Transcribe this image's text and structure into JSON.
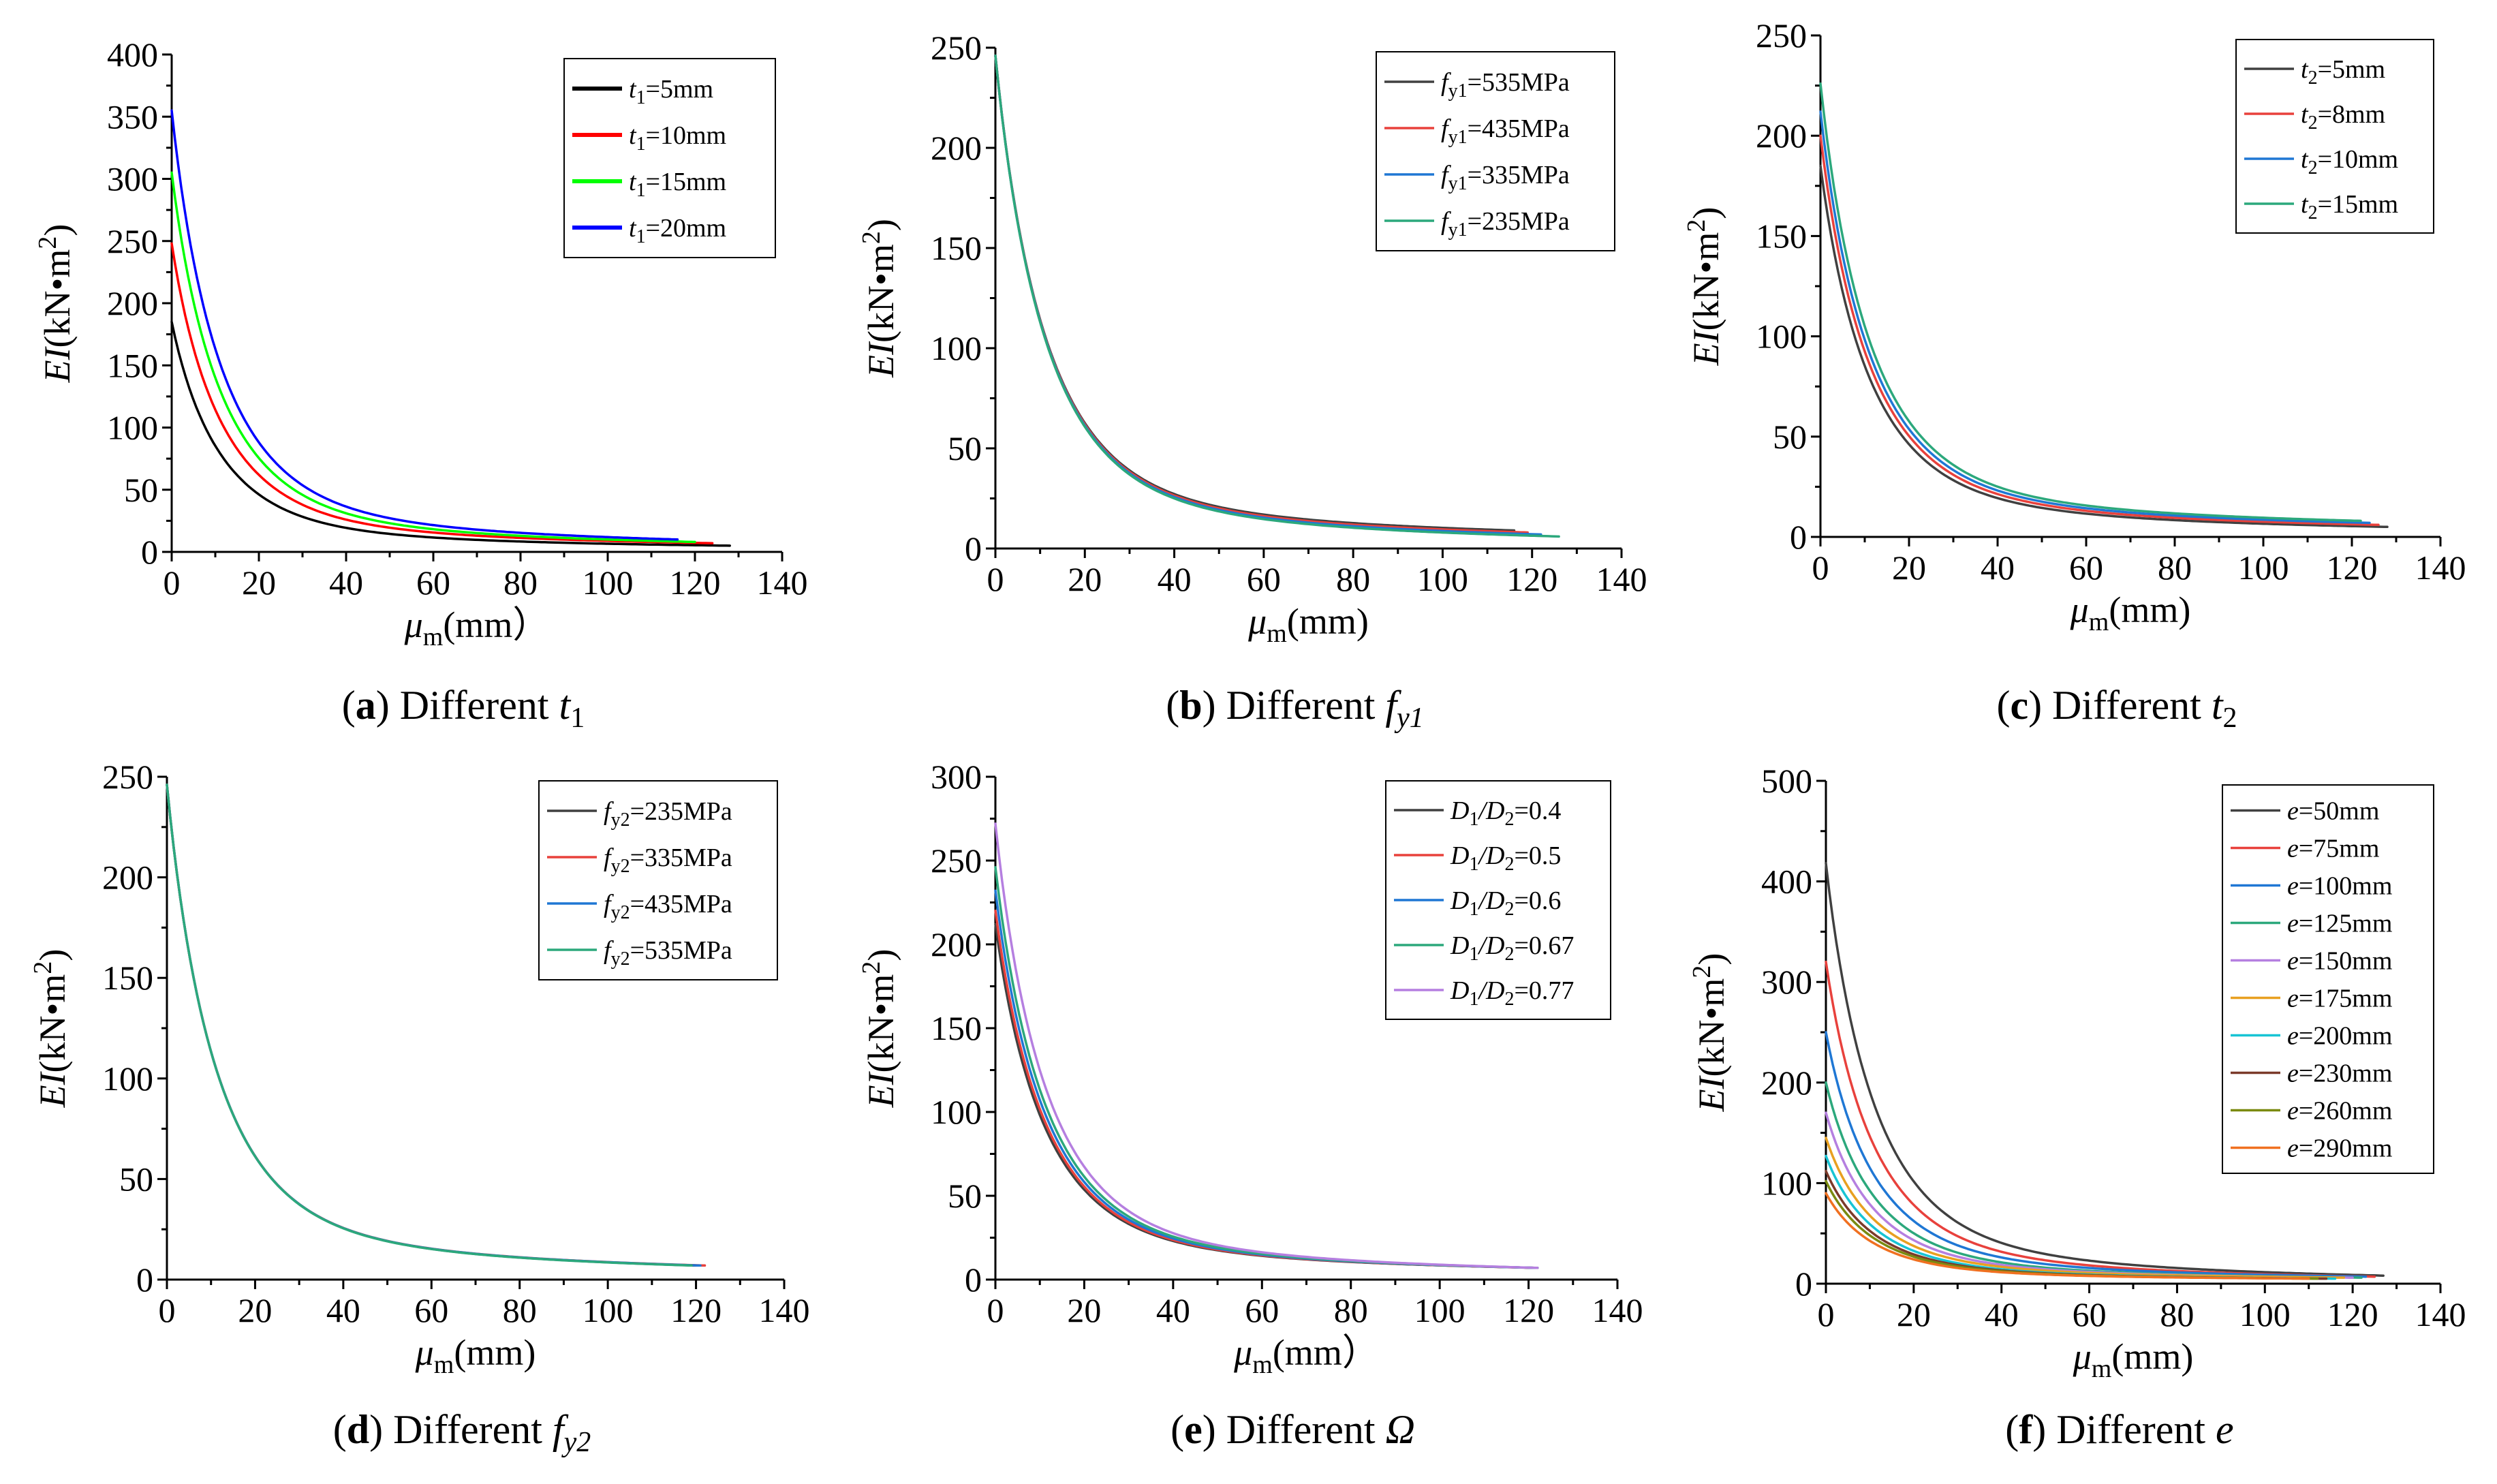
{
  "figure": {
    "chart_data": [
      {
        "id": "a",
        "type": "line",
        "caption": {
          "letter": "a",
          "prefix": "Different ",
          "sym": "t",
          "sub": "1",
          "symItalic": true
        },
        "xlabel": {
          "sym": "μ",
          "sub": "m",
          "unit": "(mm）"
        },
        "ylabel": {
          "sym": "EI",
          "unit": "(kN•m",
          "sup": "2",
          "close": ")"
        },
        "xlim": [
          0,
          140
        ],
        "ylim": [
          0,
          400
        ],
        "xticks": [
          "0",
          "20",
          "40",
          "60",
          "80",
          "100",
          "120",
          "140"
        ],
        "yticks": [
          "0",
          "50",
          "100",
          "150",
          "200",
          "250",
          "300",
          "350",
          "400"
        ],
        "legend_position": "top-right",
        "series": [
          {
            "name": "t1=5mm",
            "label": {
              "sym": "t",
              "sub": "1",
              "rest": "=5mm"
            },
            "color": "#000000",
            "bold": true,
            "x_end": 128,
            "peak": 185,
            "tail": 5
          },
          {
            "name": "t1=10mm",
            "label": {
              "sym": "t",
              "sub": "1",
              "rest": "=10mm"
            },
            "color": "#ff0000",
            "bold": true,
            "x_end": 124,
            "peak": 248,
            "tail": 7
          },
          {
            "name": "t1=15mm",
            "label": {
              "sym": "t",
              "sub": "1",
              "rest": "=15mm"
            },
            "color": "#00ff00",
            "bold": true,
            "x_end": 120,
            "peak": 305,
            "tail": 8
          },
          {
            "name": "t1=20mm",
            "label": {
              "sym": "t",
              "sub": "1",
              "rest": "=20mm"
            },
            "color": "#0000ff",
            "bold": true,
            "x_end": 116,
            "peak": 355,
            "tail": 10
          }
        ]
      },
      {
        "id": "b",
        "type": "line",
        "caption": {
          "letter": "b",
          "prefix": "Different ",
          "sym": "f",
          "sub": "y1",
          "symItalic": true
        },
        "xlabel": {
          "sym": "μ",
          "sub": "m",
          "unit": "(mm)"
        },
        "ylabel": {
          "sym": "EI",
          "unit": "(kN•m",
          "sup": "2",
          "close": ")"
        },
        "xlim": [
          0,
          140
        ],
        "ylim": [
          0,
          250
        ],
        "xticks": [
          "0",
          "20",
          "40",
          "60",
          "80",
          "100",
          "120",
          "140"
        ],
        "yticks": [
          "0",
          "50",
          "100",
          "150",
          "200",
          "250"
        ],
        "legend_position": "top-right",
        "series": [
          {
            "name": "fy1=535MPa",
            "label": {
              "sym": "f",
              "sub": "y1",
              "rest": "=535MPa"
            },
            "color": "#404040",
            "x_end": 116,
            "peak": 246,
            "tail": 9
          },
          {
            "name": "fy1=435MPa",
            "label": {
              "sym": "f",
              "sub": "y1",
              "rest": "=435MPa"
            },
            "color": "#e8413c",
            "x_end": 119,
            "peak": 246,
            "tail": 8
          },
          {
            "name": "fy1=335MPa",
            "label": {
              "sym": "f",
              "sub": "y1",
              "rest": "=335MPa"
            },
            "color": "#1f77d4",
            "x_end": 122,
            "peak": 246,
            "tail": 7
          },
          {
            "name": "fy1=235MPa",
            "label": {
              "sym": "f",
              "sub": "y1",
              "rest": "=235MPa"
            },
            "color": "#2ca87c",
            "x_end": 126,
            "peak": 246,
            "tail": 6
          }
        ]
      },
      {
        "id": "c",
        "type": "line",
        "caption": {
          "letter": "c",
          "prefix": "Different ",
          "sym": "t",
          "sub": "2",
          "symItalic": true
        },
        "xlabel": {
          "sym": "μ",
          "sub": "m",
          "unit": "(mm)"
        },
        "ylabel": {
          "sym": "EI",
          "unit": "(kN•m",
          "sup": "2",
          "close": ")"
        },
        "xlim": [
          0,
          140
        ],
        "ylim": [
          0,
          250
        ],
        "xticks": [
          "0",
          "20",
          "40",
          "60",
          "80",
          "100",
          "120",
          "140"
        ],
        "yticks": [
          "0",
          "50",
          "100",
          "150",
          "200",
          "250"
        ],
        "legend_position": "top-right",
        "series": [
          {
            "name": "t2=5mm",
            "label": {
              "sym": "t",
              "sub": "2",
              "rest": "=5mm"
            },
            "color": "#404040",
            "x_end": 128,
            "peak": 185,
            "tail": 5
          },
          {
            "name": "t2=8mm",
            "label": {
              "sym": "t",
              "sub": "2",
              "rest": "=8mm"
            },
            "color": "#e8413c",
            "x_end": 126,
            "peak": 200,
            "tail": 6
          },
          {
            "name": "t2=10mm",
            "label": {
              "sym": "t",
              "sub": "2",
              "rest": "=10mm"
            },
            "color": "#1f77d4",
            "x_end": 124,
            "peak": 212,
            "tail": 7
          },
          {
            "name": "t2=15mm",
            "label": {
              "sym": "t",
              "sub": "2",
              "rest": "=15mm"
            },
            "color": "#2ca87c",
            "x_end": 122,
            "peak": 226,
            "tail": 8
          }
        ]
      },
      {
        "id": "d",
        "type": "line",
        "caption": {
          "letter": "d",
          "prefix": "Different ",
          "sym": "f",
          "sub": "y2",
          "symItalic": true
        },
        "xlabel": {
          "sym": "μ",
          "sub": "m",
          "unit": "(mm)"
        },
        "ylabel": {
          "sym": "EI",
          "unit": "(kN•m",
          "sup": "2",
          "close": ")"
        },
        "xlim": [
          0,
          140
        ],
        "ylim": [
          0,
          250
        ],
        "xticks": [
          "0",
          "20",
          "40",
          "60",
          "80",
          "100",
          "120",
          "140"
        ],
        "yticks": [
          "0",
          "50",
          "100",
          "150",
          "200",
          "250"
        ],
        "legend_position": "top-right",
        "series": [
          {
            "name": "fy2=235MPa",
            "label": {
              "sym": "f",
              "sub": "y2",
              "rest": "=235MPa"
            },
            "color": "#404040",
            "x_end": 120,
            "peak": 246,
            "tail": 7
          },
          {
            "name": "fy2=335MPa",
            "label": {
              "sym": "f",
              "sub": "y2",
              "rest": "=335MPa"
            },
            "color": "#e8413c",
            "x_end": 122,
            "peak": 246,
            "tail": 7
          },
          {
            "name": "fy2=435MPa",
            "label": {
              "sym": "f",
              "sub": "y2",
              "rest": "=435MPa"
            },
            "color": "#1f77d4",
            "x_end": 121,
            "peak": 246,
            "tail": 7
          },
          {
            "name": "fy2=535MPa",
            "label": {
              "sym": "f",
              "sub": "y2",
              "rest": "=535MPa"
            },
            "color": "#2ca87c",
            "x_end": 119,
            "peak": 246,
            "tail": 7
          }
        ]
      },
      {
        "id": "e",
        "type": "line",
        "caption": {
          "letter": "e",
          "prefix": "Different ",
          "sym": "Ω",
          "sub": "",
          "symItalic": true
        },
        "xlabel": {
          "sym": "μ",
          "sub": "m",
          "unit": "(mm）"
        },
        "ylabel": {
          "sym": "EI",
          "unit": "(kN•m",
          "sup": "2",
          "close": ")"
        },
        "xlim": [
          0,
          140
        ],
        "ylim": [
          0,
          300
        ],
        "xticks": [
          "0",
          "20",
          "40",
          "60",
          "80",
          "100",
          "120",
          "140"
        ],
        "yticks": [
          "0",
          "50",
          "100",
          "150",
          "200",
          "250",
          "300"
        ],
        "legend_position": "top-right",
        "series": [
          {
            "name": "D1/D2=0.4",
            "label": {
              "sym": "D",
              "sub": "1",
              "sym2": "/D",
              "sub2": "2",
              "rest": "=0.4"
            },
            "color": "#404040",
            "x_end": 122,
            "peak": 212,
            "tail": 7
          },
          {
            "name": "D1/D2=0.5",
            "label": {
              "sym": "D",
              "sub": "1",
              "sym2": "/D",
              "sub2": "2",
              "rest": "=0.5"
            },
            "color": "#e8413c",
            "x_end": 122,
            "peak": 220,
            "tail": 7
          },
          {
            "name": "D1/D2=0.6",
            "label": {
              "sym": "D",
              "sub": "1",
              "sym2": "/D",
              "sub2": "2",
              "rest": "=0.6"
            },
            "color": "#1f77d4",
            "x_end": 122,
            "peak": 232,
            "tail": 7
          },
          {
            "name": "D1/D2=0.67",
            "label": {
              "sym": "D",
              "sub": "1",
              "sym2": "/D",
              "sub2": "2",
              "rest": "=0.67"
            },
            "color": "#2ca87c",
            "x_end": 122,
            "peak": 246,
            "tail": 7
          },
          {
            "name": "D1/D2=0.77",
            "label": {
              "sym": "D",
              "sub": "1",
              "sym2": "/D",
              "sub2": "2",
              "rest": "=0.77"
            },
            "color": "#b57fe0",
            "x_end": 122,
            "peak": 272,
            "tail": 7
          }
        ]
      },
      {
        "id": "f",
        "type": "line",
        "caption": {
          "letter": "f",
          "prefix": "Different ",
          "sym": "e",
          "sub": "",
          "symItalic": true
        },
        "xlabel": {
          "sym": "μ",
          "sub": "m",
          "unit": "(mm)"
        },
        "ylabel": {
          "sym": "EI",
          "unit": "(kN•m",
          "sup": "2",
          "close": ")"
        },
        "xlim": [
          0,
          140
        ],
        "ylim": [
          0,
          500
        ],
        "xticks": [
          "0",
          "20",
          "40",
          "60",
          "80",
          "100",
          "120",
          "140"
        ],
        "yticks": [
          "0",
          "100",
          "200",
          "300",
          "400",
          "500"
        ],
        "legend_position": "top-right",
        "series": [
          {
            "name": "e=50mm",
            "label": {
              "sym": "e",
              "sub": "",
              "rest": "=50mm"
            },
            "color": "#404040",
            "x_end": 127,
            "peak": 418,
            "tail": 8
          },
          {
            "name": "e=75mm",
            "label": {
              "sym": "e",
              "sub": "",
              "rest": "=75mm"
            },
            "color": "#e8413c",
            "x_end": 125,
            "peak": 320,
            "tail": 7
          },
          {
            "name": "e=100mm",
            "label": {
              "sym": "e",
              "sub": "",
              "rest": "=100mm"
            },
            "color": "#1f77d4",
            "x_end": 123,
            "peak": 250,
            "tail": 7
          },
          {
            "name": "e=125mm",
            "label": {
              "sym": "e",
              "sub": "",
              "rest": "=125mm"
            },
            "color": "#2ca87c",
            "x_end": 122,
            "peak": 200,
            "tail": 6
          },
          {
            "name": "e=150mm",
            "label": {
              "sym": "e",
              "sub": "",
              "rest": "=150mm"
            },
            "color": "#b57fe0",
            "x_end": 120,
            "peak": 170,
            "tail": 6
          },
          {
            "name": "e=175mm",
            "label": {
              "sym": "e",
              "sub": "",
              "rest": "=175mm"
            },
            "color": "#e8a020",
            "x_end": 118,
            "peak": 145,
            "tail": 6
          },
          {
            "name": "e=200mm",
            "label": {
              "sym": "e",
              "sub": "",
              "rest": "=200mm"
            },
            "color": "#17c4d4",
            "x_end": 116,
            "peak": 127,
            "tail": 5
          },
          {
            "name": "e=230mm",
            "label": {
              "sym": "e",
              "sub": "",
              "rest": "=230mm"
            },
            "color": "#7b3a2a",
            "x_end": 114,
            "peak": 112,
            "tail": 5
          },
          {
            "name": "e=260mm",
            "label": {
              "sym": "e",
              "sub": "",
              "rest": "=260mm"
            },
            "color": "#7a8a10",
            "x_end": 112,
            "peak": 102,
            "tail": 5
          },
          {
            "name": "e=290mm",
            "label": {
              "sym": "e",
              "sub": "",
              "rest": "=290mm"
            },
            "color": "#f07020",
            "x_end": 110,
            "peak": 90,
            "tail": 5
          }
        ]
      }
    ]
  }
}
